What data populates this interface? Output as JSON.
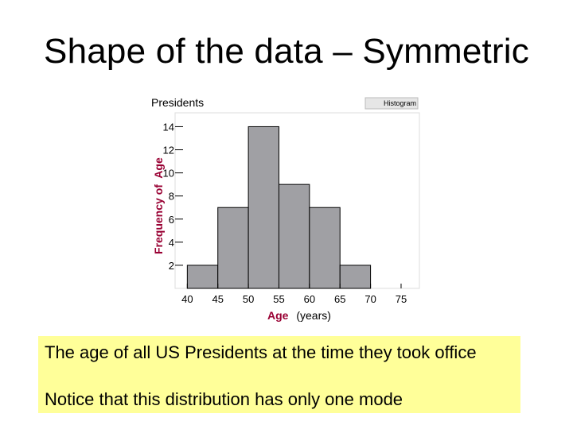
{
  "slide": {
    "title": "Shape of the data – Symmetric",
    "note_line1": "The age of all US Presidents at the time they took office",
    "note_line2": "Notice that this distribution has only one mode"
  },
  "chart_data": {
    "type": "bar",
    "title": "Presidents",
    "legend_label": "Histogram",
    "xlabel_main": "Age",
    "xlabel_unit": "(years)",
    "ylabel_prefix": "Frequency of",
    "ylabel_var": "Age",
    "bins": [
      [
        40,
        45
      ],
      [
        45,
        50
      ],
      [
        50,
        55
      ],
      [
        55,
        60
      ],
      [
        60,
        65
      ],
      [
        65,
        70
      ]
    ],
    "values": [
      2,
      7,
      14,
      9,
      7,
      2
    ],
    "xlim": [
      38,
      78
    ],
    "ylim": [
      0,
      15.2
    ],
    "xticks": [
      40,
      45,
      50,
      55,
      60,
      65,
      70,
      75
    ],
    "yticks": [
      2,
      4,
      6,
      8,
      10,
      12,
      14
    ],
    "colors": {
      "bar": "#a0a0a4",
      "var": "#990033",
      "unit": "#339933"
    }
  }
}
